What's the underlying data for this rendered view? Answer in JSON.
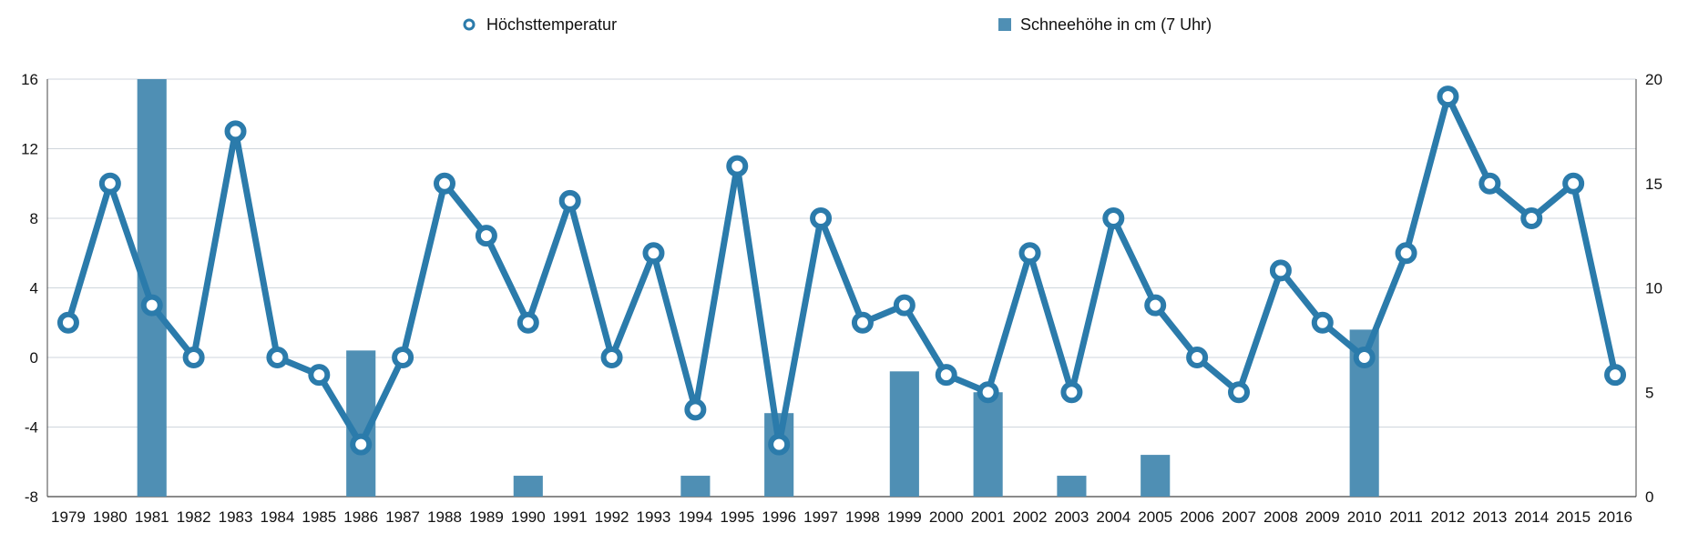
{
  "chart_data": {
    "type": "bar+line",
    "title": "",
    "categories": [
      "1979",
      "1980",
      "1981",
      "1982",
      "1983",
      "1984",
      "1985",
      "1986",
      "1987",
      "1988",
      "1989",
      "1990",
      "1991",
      "1992",
      "1993",
      "1994",
      "1995",
      "1996",
      "1997",
      "1998",
      "1999",
      "2000",
      "2001",
      "2002",
      "2003",
      "2004",
      "2005",
      "2006",
      "2007",
      "2008",
      "2009",
      "2010",
      "2011",
      "2012",
      "2013",
      "2014",
      "2015",
      "2016"
    ],
    "series": [
      {
        "name": "Höchsttemperatur",
        "kind": "line",
        "axis": "left",
        "color": "#2b7bab",
        "values": [
          2,
          10,
          3,
          0,
          13,
          0,
          -1,
          -5,
          0,
          10,
          7,
          2,
          9,
          0,
          6,
          -3,
          11,
          -5,
          8,
          2,
          3,
          -1,
          -2,
          6,
          -2,
          8,
          3,
          0,
          -2,
          5,
          2,
          0,
          6,
          15,
          10,
          8,
          10,
          -1
        ]
      },
      {
        "name": "Schneehöhe in cm (7 Uhr)",
        "kind": "bar",
        "axis": "right",
        "color": "#4f8fb4",
        "values": [
          0,
          0,
          20,
          0,
          0,
          0,
          0,
          7,
          0,
          0,
          0,
          1,
          0,
          0,
          0,
          1,
          0,
          4,
          0,
          0,
          6,
          0,
          5,
          0,
          1,
          0,
          2,
          0,
          0,
          0,
          0,
          8,
          0,
          0,
          0,
          0,
          0,
          0
        ]
      }
    ],
    "y_left": {
      "min": -8,
      "max": 16,
      "ticks": [
        "16",
        "12",
        "8",
        "4",
        "0",
        "-4",
        "-8"
      ]
    },
    "y_right": {
      "min": 0,
      "max": 20,
      "ticks": [
        "20",
        "15",
        "10",
        "5",
        "0"
      ]
    },
    "grid": true,
    "legend": "top-center"
  }
}
